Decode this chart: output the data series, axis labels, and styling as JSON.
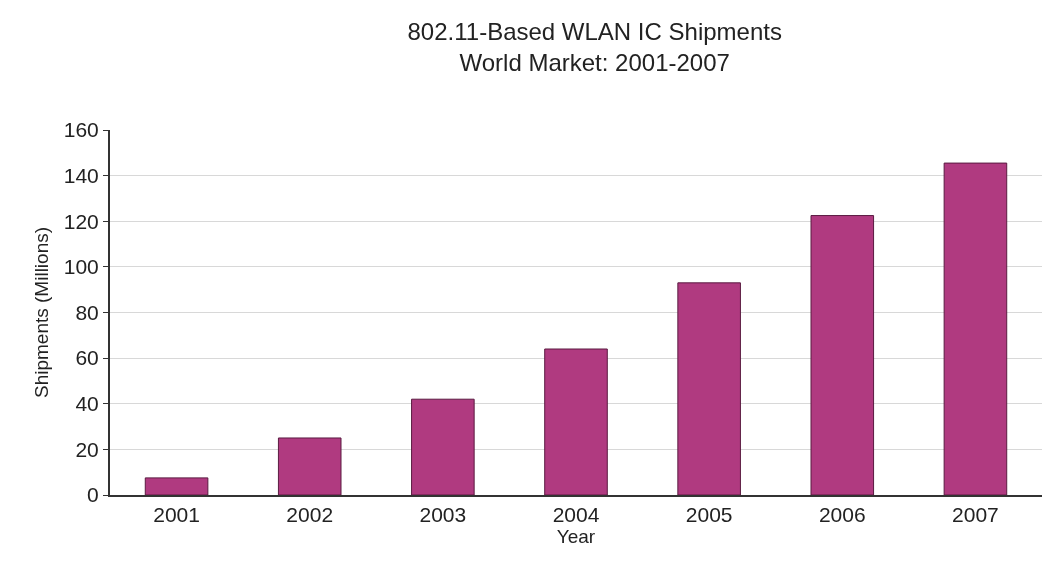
{
  "chart_data": {
    "type": "bar",
    "title": "802.11-Based WLAN IC Shipments\nWorld Market: 2001-2007",
    "xlabel": "Year",
    "ylabel": "Shipments (Millions)",
    "categories": [
      "2001",
      "2002",
      "2003",
      "2004",
      "2005",
      "2006",
      "2007"
    ],
    "values": [
      7.5,
      25,
      42,
      64,
      93,
      122.5,
      145.5
    ],
    "color": "#b03a80",
    "ylim": [
      0,
      160
    ],
    "yticks": [
      0,
      20,
      40,
      60,
      80,
      100,
      120,
      140,
      160
    ],
    "grid": "y"
  }
}
